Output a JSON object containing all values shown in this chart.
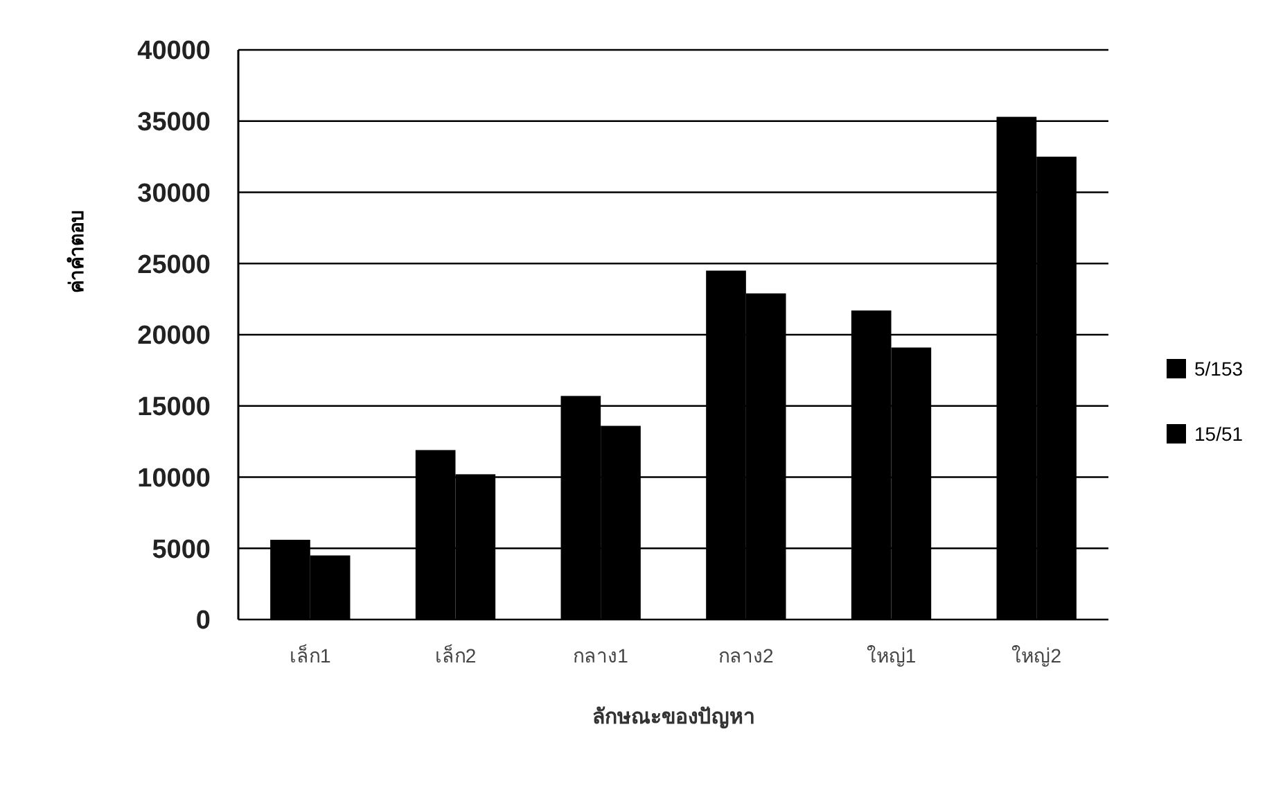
{
  "chart_data": {
    "type": "bar",
    "xlabel": "ลักษณะของปัญหา",
    "ylabel": "ค่าคำตอบ",
    "categories": [
      "เล็ก1",
      "เล็ก2",
      "กลาง1",
      "กลาง2",
      "ใหญ่1",
      "ใหญ่2"
    ],
    "series": [
      {
        "name": "5/153",
        "color": "#000000",
        "values": [
          5600,
          11900,
          15700,
          24500,
          21700,
          35300
        ]
      },
      {
        "name": "15/51",
        "color": "#000000",
        "values": [
          4500,
          10200,
          13600,
          22900,
          19100,
          32500
        ]
      }
    ],
    "ylim": [
      0,
      40000
    ],
    "yticks": [
      0,
      5000,
      10000,
      15000,
      20000,
      25000,
      30000,
      35000,
      40000
    ],
    "grid": "y",
    "legend": "right"
  }
}
